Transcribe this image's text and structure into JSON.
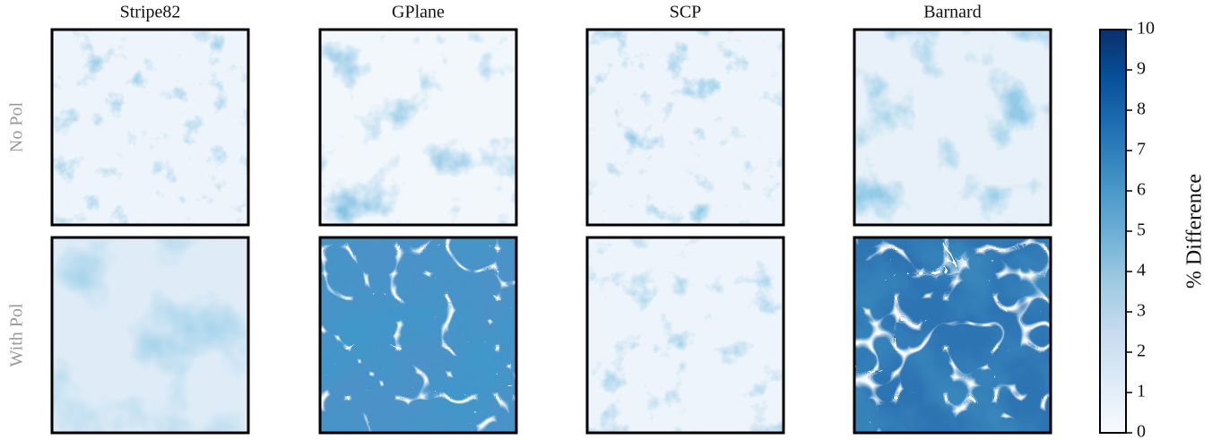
{
  "chart_data": {
    "type": "heatmap",
    "columns": [
      "Stripe82",
      "GPlane",
      "SCP",
      "Barnard"
    ],
    "rows": [
      "No Pol",
      "With Pol"
    ],
    "colorbar": {
      "label": "% Difference",
      "lim": [
        0,
        10
      ],
      "ticks": [
        0,
        1,
        2,
        3,
        4,
        5,
        6,
        7,
        8,
        9,
        10
      ],
      "colors": [
        "#f7fbff",
        "#deebf7",
        "#c6dbef",
        "#9ecae1",
        "#6baed6",
        "#4292c6",
        "#2171b5",
        "#08519c",
        "#08306b"
      ]
    }
  }
}
